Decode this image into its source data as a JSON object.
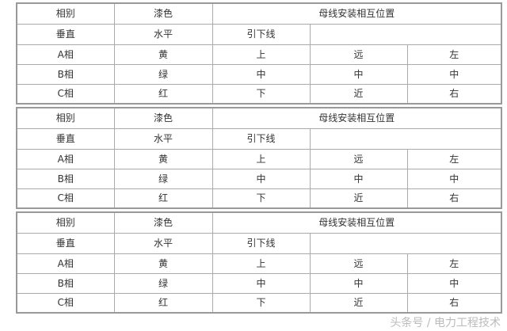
{
  "tables": [
    {
      "header": {
        "phase": "相别",
        "paint": "漆色",
        "position": "母线安装相互位置"
      },
      "subheader": {
        "vertical": "垂直",
        "horizontal": "水平",
        "downlead": "引下线"
      },
      "rows": [
        [
          "A相",
          "黄",
          "上",
          "远",
          "左"
        ],
        [
          "B相",
          "绿",
          "中",
          "中",
          "中"
        ],
        [
          "C相",
          "红",
          "下",
          "近",
          "右"
        ]
      ]
    },
    {
      "header": {
        "phase": "相别",
        "paint": "漆色",
        "position": "母线安装相互位置"
      },
      "subheader": {
        "vertical": "垂直",
        "horizontal": "水平",
        "downlead": "引下线"
      },
      "rows": [
        [
          "A相",
          "黄",
          "上",
          "远",
          "左"
        ],
        [
          "B相",
          "绿",
          "中",
          "中",
          "中"
        ],
        [
          "C相",
          "红",
          "下",
          "近",
          "右"
        ]
      ]
    },
    {
      "header": {
        "phase": "相别",
        "paint": "漆色",
        "position": "母线安装相互位置"
      },
      "subheader": {
        "vertical": "垂直",
        "horizontal": "水平",
        "downlead": "引下线"
      },
      "rows": [
        [
          "A相",
          "黄",
          "上",
          "远",
          "左"
        ],
        [
          "B相",
          "绿",
          "中",
          "中",
          "中"
        ],
        [
          "C相",
          "红",
          "下",
          "近",
          "右"
        ]
      ]
    }
  ],
  "watermark": "头条号 / 电力工程技术"
}
